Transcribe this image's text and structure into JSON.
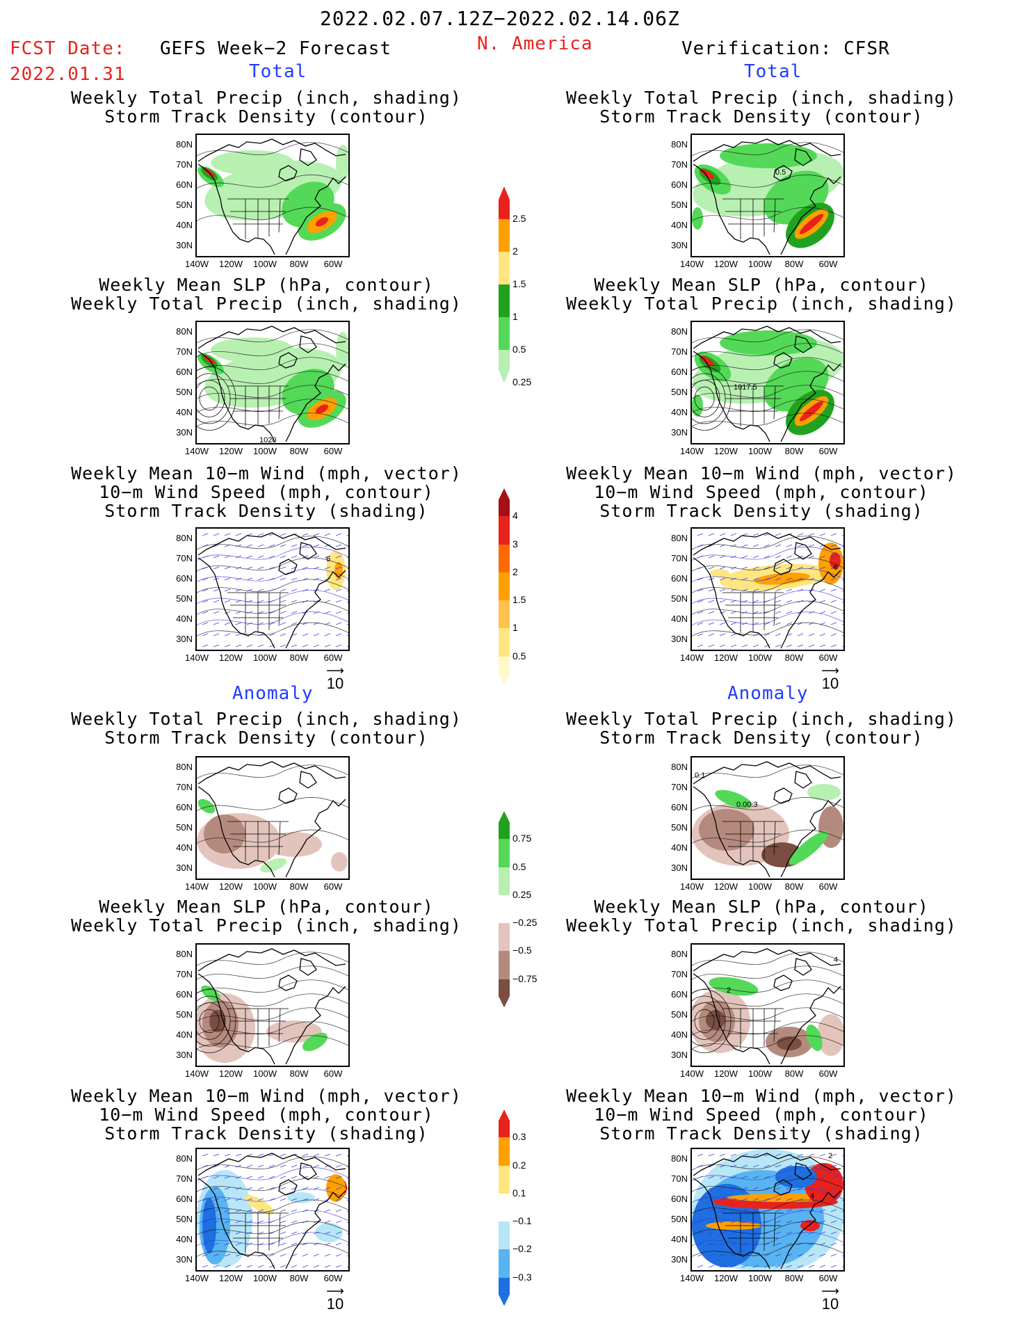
{
  "header": {
    "date_range": "2022.02.07.12Z−2022.02.14.06Z",
    "fcst_date_label": "FCST Date:",
    "fcst_date_value": "2022.01.31",
    "forecast_title": "GEFS Week−2 Forecast",
    "region": "N. America",
    "verification": "Verification: CFSR"
  },
  "sections": {
    "total": "Total",
    "anomaly": "Anomaly"
  },
  "panel_titles": {
    "precip_track": "Weekly Total Precip (inch, shading)\nStorm Track Density (contour)",
    "slp_precip": "Weekly Mean SLP (hPa, contour)\nWeekly Total Precip (inch, shading)",
    "wind_track": "Weekly Mean 10−m Wind (mph, vector)\n10−m Wind Speed (mph, contour)\nStorm Track Density (shading)"
  },
  "axes": {
    "lat_ticks": [
      "80N",
      "70N",
      "60N",
      "50N",
      "40N",
      "30N"
    ],
    "lon_ticks": [
      "140W",
      "120W",
      "100W",
      "80W",
      "60W"
    ]
  },
  "vector_ref": "10",
  "map_labels": {
    "obs_precip_track": "0.5",
    "obs_slp": "1017.5",
    "fcst_slp": "1020",
    "obs_anom_track": "0.1",
    "obs_anom_track2": "0.00.3",
    "obs_anom_slp": "4",
    "obs_anom_slp2": "2",
    "fcst_wind": "6",
    "obs_wind": "6",
    "obs_anom_wind": "2",
    "obs_anom_wind2": "4"
  },
  "colorbars": {
    "precip_total": {
      "labels": [
        "2.5",
        "2",
        "1.5",
        "1",
        "0.5",
        "0.25"
      ],
      "colors": [
        "#e8221c",
        "#ffa000",
        "#ffe680",
        "#21a21f",
        "#53d957",
        "#b8f0b2"
      ]
    },
    "track_total": {
      "labels": [
        "4",
        "3",
        "2",
        "1.5",
        "1",
        "0.5"
      ],
      "colors": [
        "#a50f15",
        "#e8221c",
        "#ff6a00",
        "#ffa000",
        "#ffc24d",
        "#ffe680",
        "#fff8c8"
      ]
    },
    "precip_anom": {
      "labels": [
        "0.75",
        "0.5",
        "0.25",
        "−0.25",
        "−0.5",
        "−0.75"
      ],
      "colors": [
        "#21a21f",
        "#53d957",
        "#b8f0b2",
        "#ffffff",
        "#e3c4bc",
        "#b58a7e",
        "#7a4e40"
      ]
    },
    "track_anom": {
      "labels": [
        "0.3",
        "0.2",
        "0.1",
        "−0.1",
        "−0.2",
        "−0.3"
      ],
      "colors": [
        "#e8221c",
        "#ffa000",
        "#ffe680",
        "#ffffff",
        "#b7e6f7",
        "#58b4f0",
        "#1e6fe0"
      ]
    }
  }
}
